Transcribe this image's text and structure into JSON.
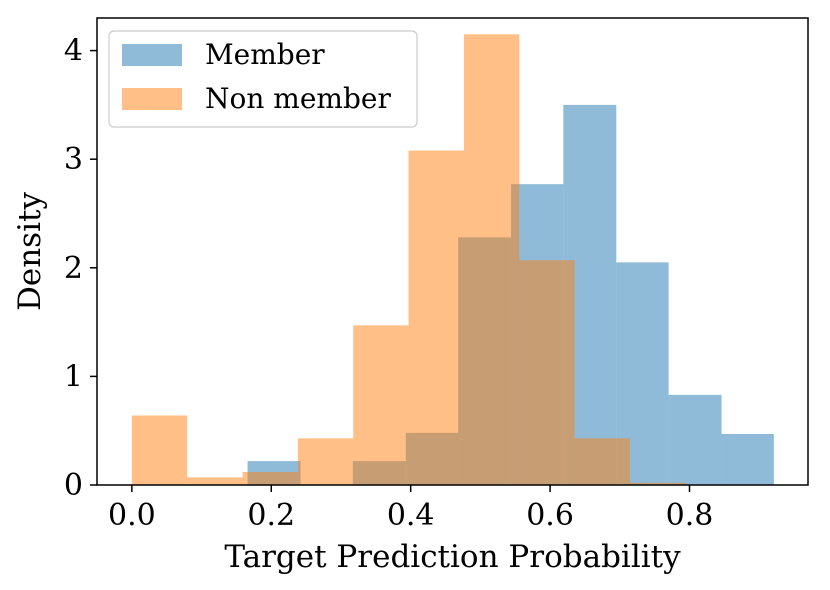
{
  "chart_data": {
    "type": "histogram",
    "title": "",
    "xlabel": "Target Prediction Probability",
    "ylabel": "Density",
    "xlim": [
      -0.05,
      0.97
    ],
    "ylim": [
      0,
      4.3
    ],
    "xticks": [
      0.0,
      0.2,
      0.4,
      0.6,
      0.8
    ],
    "xtick_labels": [
      "0.0",
      "0.2",
      "0.4",
      "0.6",
      "0.8"
    ],
    "yticks": [
      0,
      1,
      2,
      3,
      4
    ],
    "ytick_labels": [
      "0",
      "1",
      "2",
      "3",
      "4"
    ],
    "grid": false,
    "legend": {
      "position": "top-left"
    },
    "series": [
      {
        "name": "Member",
        "color": "#1f77b4",
        "alpha": 0.5,
        "bin_edges": [
          0.166,
          0.242,
          0.317,
          0.393,
          0.468,
          0.544,
          0.619,
          0.695,
          0.77,
          0.846,
          0.921
        ],
        "values": [
          0.22,
          0.0,
          0.22,
          0.48,
          2.28,
          2.77,
          3.5,
          2.05,
          0.83,
          0.47
        ]
      },
      {
        "name": "Non member",
        "color": "#ff7f0e",
        "alpha": 0.5,
        "bin_edges": [
          0.0,
          0.0794,
          0.1588,
          0.2382,
          0.3176,
          0.397,
          0.4764,
          0.5558,
          0.6352,
          0.7146,
          0.794
        ],
        "values": [
          0.64,
          0.07,
          0.12,
          0.43,
          1.47,
          3.08,
          4.15,
          2.07,
          0.43,
          0.02
        ]
      }
    ]
  }
}
